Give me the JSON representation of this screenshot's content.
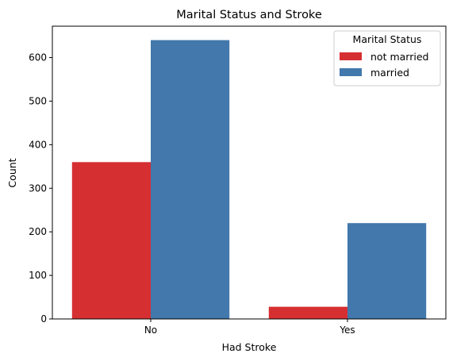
{
  "chart_data": {
    "type": "bar",
    "title": "Marital Status and Stroke",
    "xlabel": "Had Stroke",
    "ylabel": "Count",
    "categories": [
      "No",
      "Yes"
    ],
    "series": [
      {
        "name": "not married",
        "color": "#d62f32",
        "values": [
          360,
          28
        ]
      },
      {
        "name": "married",
        "color": "#4278ab",
        "values": [
          640,
          220
        ]
      }
    ],
    "ylim": [
      0,
      672
    ],
    "yticks": [
      0,
      100,
      200,
      300,
      400,
      500,
      600
    ],
    "grid": false,
    "legend": {
      "title": "Marital Status",
      "placement": "top-right"
    }
  }
}
